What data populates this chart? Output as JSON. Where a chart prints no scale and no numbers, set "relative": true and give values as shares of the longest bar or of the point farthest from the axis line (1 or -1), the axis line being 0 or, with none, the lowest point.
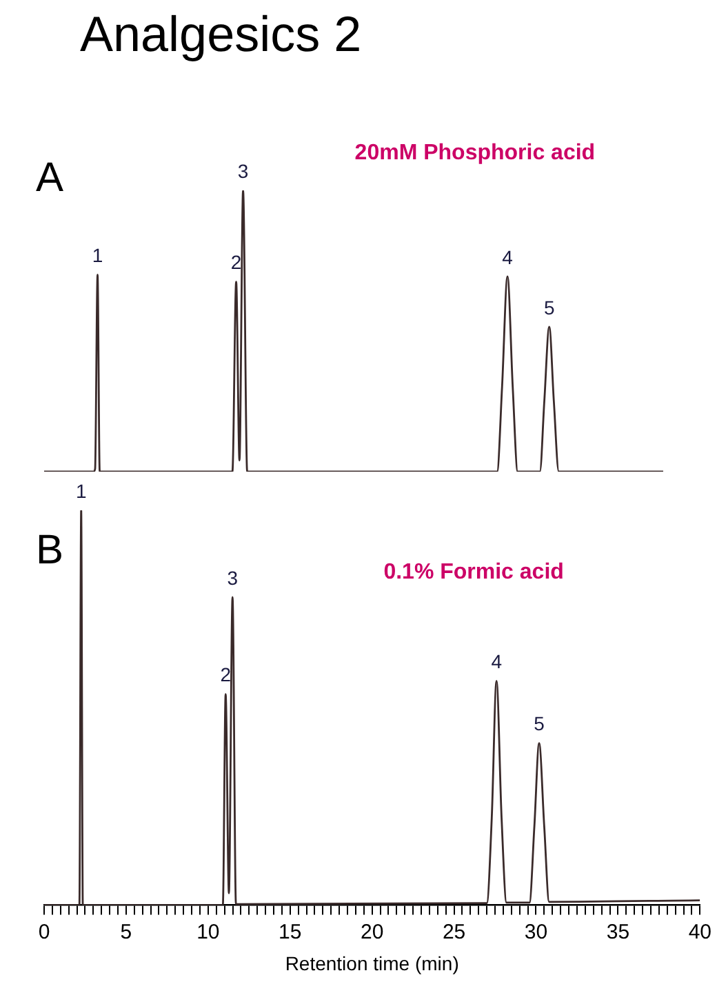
{
  "chart_data": [
    {
      "type": "line",
      "title": "Analgesics 2",
      "relative": true,
      "tick_labels": false,
      "grid": false,
      "legend": false,
      "marker": "none",
      "line_style": "solid",
      "annotations": [
        "A",
        "20mM Phosphoric acid",
        {
          "text": "1",
          "x": 3.25,
          "y": 0.7
        },
        {
          "text": "2",
          "x": 11.68,
          "y": 0.675
        },
        {
          "text": "3",
          "x": 12.1,
          "y": 1
        },
        {
          "text": "4",
          "x": 28.18,
          "y": 0.694
        },
        {
          "text": "5",
          "x": 30.72,
          "y": 0.515
        }
      ],
      "xlim": [
        0,
        40
      ],
      "series": [
        {
          "color": "#3a2a2a",
          "x": [
            0,
            3.0,
            3.1,
            3.25,
            3.38,
            4.2,
            11.45,
            11.68,
            11.88,
            12.1,
            12.35,
            27.55,
            27.85,
            28.18,
            28.5,
            28.8,
            30.15,
            30.42,
            30.72,
            31.0,
            31.3,
            37.65
          ],
          "values": [
            0,
            0,
            0.01,
            0.7,
            0,
            0,
            0,
            0.675,
            0.04,
            1,
            0,
            0,
            0.3,
            0.694,
            0.3,
            0,
            0,
            0.25,
            0.515,
            0.25,
            0,
            0
          ]
        }
      ]
    },
    {
      "type": "line",
      "relative": true,
      "tick_labels": "x",
      "grid": false,
      "legend": false,
      "marker": "none",
      "line_style": "solid",
      "xlabel": "Retention time (min)",
      "annotations": [
        "B",
        "0.1% Formic acid",
        {
          "text": "1",
          "x": 2.26,
          "y": 1
        },
        {
          "text": "2",
          "x": 11.07,
          "y": 0.534
        },
        {
          "text": "3",
          "x": 11.49,
          "y": 0.78
        },
        {
          "text": "4",
          "x": 27.59,
          "y": 0.568
        },
        {
          "text": "5",
          "x": 30.19,
          "y": 0.41
        }
      ],
      "xlim": [
        0,
        40
      ],
      "xticks": [
        0,
        {
          "value": 0.5,
          "label": null
        },
        {
          "value": 1,
          "label": null
        },
        {
          "value": 1.5,
          "label": null
        },
        {
          "value": 2,
          "label": null
        },
        {
          "value": 2.5,
          "label": null
        },
        {
          "value": 3,
          "label": null
        },
        {
          "value": 3.5,
          "label": null
        },
        {
          "value": 4,
          "label": null
        },
        {
          "value": 4.5,
          "label": null
        },
        5,
        {
          "value": 5.5,
          "label": null
        },
        {
          "value": 6,
          "label": null
        },
        {
          "value": 6.5,
          "label": null
        },
        {
          "value": 7,
          "label": null
        },
        {
          "value": 7.5,
          "label": null
        },
        {
          "value": 8,
          "label": null
        },
        {
          "value": 8.5,
          "label": null
        },
        {
          "value": 9,
          "label": null
        },
        {
          "value": 9.5,
          "label": null
        },
        10,
        {
          "value": 10.5,
          "label": null
        },
        {
          "value": 11,
          "label": null
        },
        {
          "value": 11.5,
          "label": null
        },
        {
          "value": 12,
          "label": null
        },
        {
          "value": 12.5,
          "label": null
        },
        {
          "value": 13,
          "label": null
        },
        {
          "value": 13.5,
          "label": null
        },
        {
          "value": 14,
          "label": null
        },
        {
          "value": 14.5,
          "label": null
        },
        15,
        {
          "value": 15.5,
          "label": null
        },
        {
          "value": 16,
          "label": null
        },
        {
          "value": 16.5,
          "label": null
        },
        {
          "value": 17,
          "label": null
        },
        {
          "value": 17.5,
          "label": null
        },
        {
          "value": 18,
          "label": null
        },
        {
          "value": 18.5,
          "label": null
        },
        {
          "value": 19,
          "label": null
        },
        {
          "value": 19.5,
          "label": null
        },
        20,
        {
          "value": 20.5,
          "label": null
        },
        {
          "value": 21,
          "label": null
        },
        {
          "value": 21.5,
          "label": null
        },
        {
          "value": 22,
          "label": null
        },
        {
          "value": 22.5,
          "label": null
        },
        {
          "value": 23,
          "label": null
        },
        {
          "value": 23.5,
          "label": null
        },
        {
          "value": 24,
          "label": null
        },
        {
          "value": 24.5,
          "label": null
        },
        25,
        {
          "value": 25.5,
          "label": null
        },
        {
          "value": 26,
          "label": null
        },
        {
          "value": 26.5,
          "label": null
        },
        {
          "value": 27,
          "label": null
        },
        {
          "value": 27.5,
          "label": null
        },
        {
          "value": 28,
          "label": null
        },
        {
          "value": 28.5,
          "label": null
        },
        {
          "value": 29,
          "label": null
        },
        {
          "value": 29.5,
          "label": null
        },
        30,
        {
          "value": 30.5,
          "label": null
        },
        {
          "value": 31,
          "label": null
        },
        {
          "value": 31.5,
          "label": null
        },
        {
          "value": 32,
          "label": null
        },
        {
          "value": 32.5,
          "label": null
        },
        {
          "value": 33,
          "label": null
        },
        {
          "value": 33.5,
          "label": null
        },
        {
          "value": 34,
          "label": null
        },
        {
          "value": 34.5,
          "label": null
        },
        35,
        {
          "value": 35.5,
          "label": null
        },
        {
          "value": 36,
          "label": null
        },
        {
          "value": 36.5,
          "label": null
        },
        {
          "value": 37,
          "label": null
        },
        {
          "value": 37.5,
          "label": null
        },
        {
          "value": 38,
          "label": null
        },
        {
          "value": 38.5,
          "label": null
        },
        {
          "value": 39,
          "label": null
        },
        {
          "value": 39.5,
          "label": null
        },
        40
      ],
      "series": [
        {
          "color": "#3a2a2a",
          "x": [
            0,
            2.15,
            2.26,
            2.36,
            10.9,
            11.07,
            11.27,
            11.49,
            11.7,
            27.0,
            27.3,
            27.59,
            27.9,
            28.2,
            29.6,
            29.9,
            30.19,
            30.5,
            30.8,
            40
          ],
          "values": [
            0,
            0,
            1,
            0,
            0,
            0.534,
            0.03,
            0.78,
            0.002,
            0.005,
            0.22,
            0.568,
            0.22,
            0.006,
            0.006,
            0.2,
            0.41,
            0.2,
            0.008,
            0.012
          ]
        }
      ]
    }
  ]
}
